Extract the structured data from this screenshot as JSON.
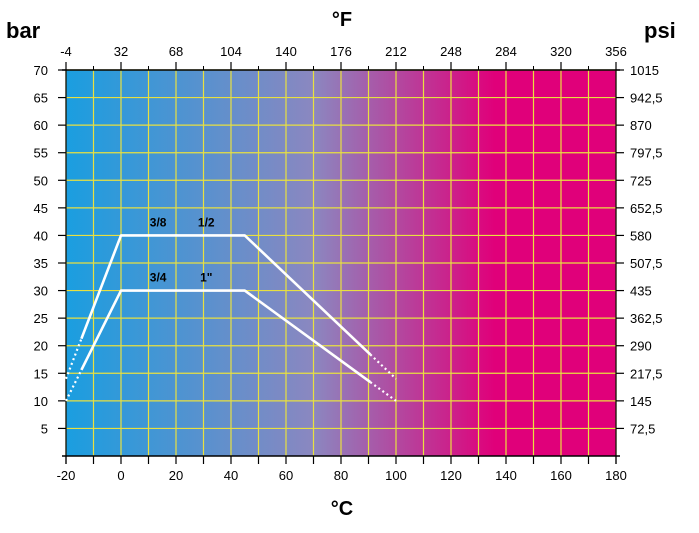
{
  "chart_data": {
    "type": "line",
    "title": "",
    "x_axis": {
      "label": "°C",
      "range": [
        -20,
        180
      ],
      "ticks": [
        "-20",
        "0",
        "20",
        "40",
        "60",
        "80",
        "100",
        "120",
        "140",
        "160",
        "180"
      ]
    },
    "x2_axis": {
      "label": "°F",
      "range": [
        -4,
        356
      ],
      "ticks": [
        "-4",
        "32",
        "68",
        "104",
        "140",
        "176",
        "212",
        "248",
        "284",
        "320",
        "356"
      ]
    },
    "y_axis": {
      "unit": "bar",
      "range": [
        0,
        70
      ],
      "ticks": [
        "5",
        "10",
        "15",
        "20",
        "25",
        "30",
        "35",
        "40",
        "45",
        "50",
        "55",
        "60",
        "65",
        "70"
      ]
    },
    "y2_axis": {
      "unit": "psi",
      "range": [
        0,
        1015
      ],
      "ticks": [
        "72,5",
        "145",
        "217,5",
        "290",
        "362,5",
        "435",
        "507,5",
        "580",
        "652,5",
        "725",
        "797,5",
        "870",
        "942,5",
        "1015"
      ]
    },
    "grid": true,
    "background": {
      "gradient_colors": [
        "#1a9ee0",
        "#8b87c0",
        "#e0007a"
      ]
    },
    "series": [
      {
        "label_left": "3/8",
        "label_right": "1/2",
        "points": [
          [
            -20,
            14
          ],
          [
            0,
            40
          ],
          [
            45,
            40
          ],
          [
            100,
            14
          ]
        ],
        "dotted_ends": true,
        "color": "#ffffff"
      },
      {
        "label_left": "3/4",
        "label_right": "1\"",
        "points": [
          [
            -20,
            10
          ],
          [
            0,
            30
          ],
          [
            45,
            30
          ],
          [
            100,
            10
          ]
        ],
        "dotted_ends": true,
        "color": "#ffffff"
      }
    ]
  }
}
